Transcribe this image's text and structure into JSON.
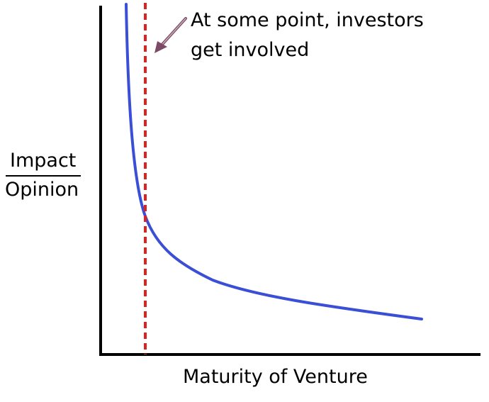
{
  "annotation": {
    "line1": "At some point, investors",
    "line2": "get involved"
  },
  "y_label": {
    "numerator": "Impact",
    "denominator": "Opinion"
  },
  "x_label": "Maturity of Venture",
  "colors": {
    "axes": "#000000",
    "curve": "#3a4fd6",
    "marker": "#dd2222",
    "arrow": "#7d4a66",
    "text": "#000000"
  },
  "icons": {
    "annotation_pointer": "arrow-icon"
  }
}
